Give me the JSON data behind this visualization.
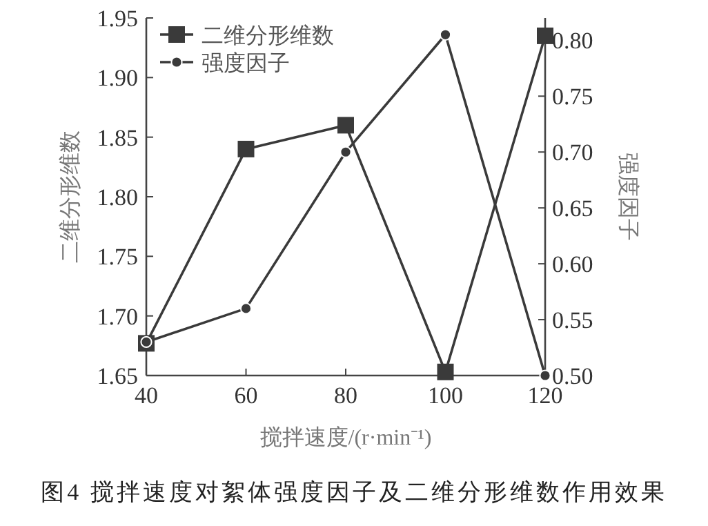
{
  "chart_data": {
    "type": "line",
    "xlabel": "搅拌速度/(r·min⁻¹)",
    "ylabel": "二维分形维数",
    "y2label": "强度因子",
    "x": [
      40,
      60,
      80,
      100,
      120
    ],
    "series": [
      {
        "name": "二维分形维数",
        "color": "#3a3a3a",
        "marker": "square",
        "values": [
          1.677,
          1.84,
          1.86,
          1.653,
          1.935
        ]
      },
      {
        "name": "强度因子",
        "color": "#3a3a3a",
        "marker": "circle",
        "axis": "y2",
        "values": [
          0.53,
          0.56,
          0.7,
          0.805,
          0.5
        ]
      }
    ],
    "xlim": [
      40,
      120
    ],
    "xticks": [
      40,
      60,
      80,
      100,
      120
    ],
    "ylim": [
      1.65,
      1.95
    ],
    "yticks": [
      1.65,
      {
        "value": 1.7,
        "label": "1.70"
      },
      1.75,
      {
        "value": 1.8,
        "label": "1.80"
      },
      1.85,
      {
        "value": 1.9,
        "label": "1.90"
      },
      1.95
    ],
    "y2lim": [
      0.5,
      0.82
    ],
    "y2ticks": [
      {
        "value": 0.5,
        "label": "0.50"
      },
      0.55,
      {
        "value": 0.6,
        "label": "0.60"
      },
      0.65,
      {
        "value": 0.7,
        "label": "0.70"
      },
      0.75,
      {
        "value": 0.8,
        "label": "0.80"
      }
    ],
    "legend": "top left",
    "grid": false,
    "line_style": "solid",
    "annotations": [
      "图4 搅拌速度对絮体强度因子及二维分形维数作用效果"
    ]
  }
}
